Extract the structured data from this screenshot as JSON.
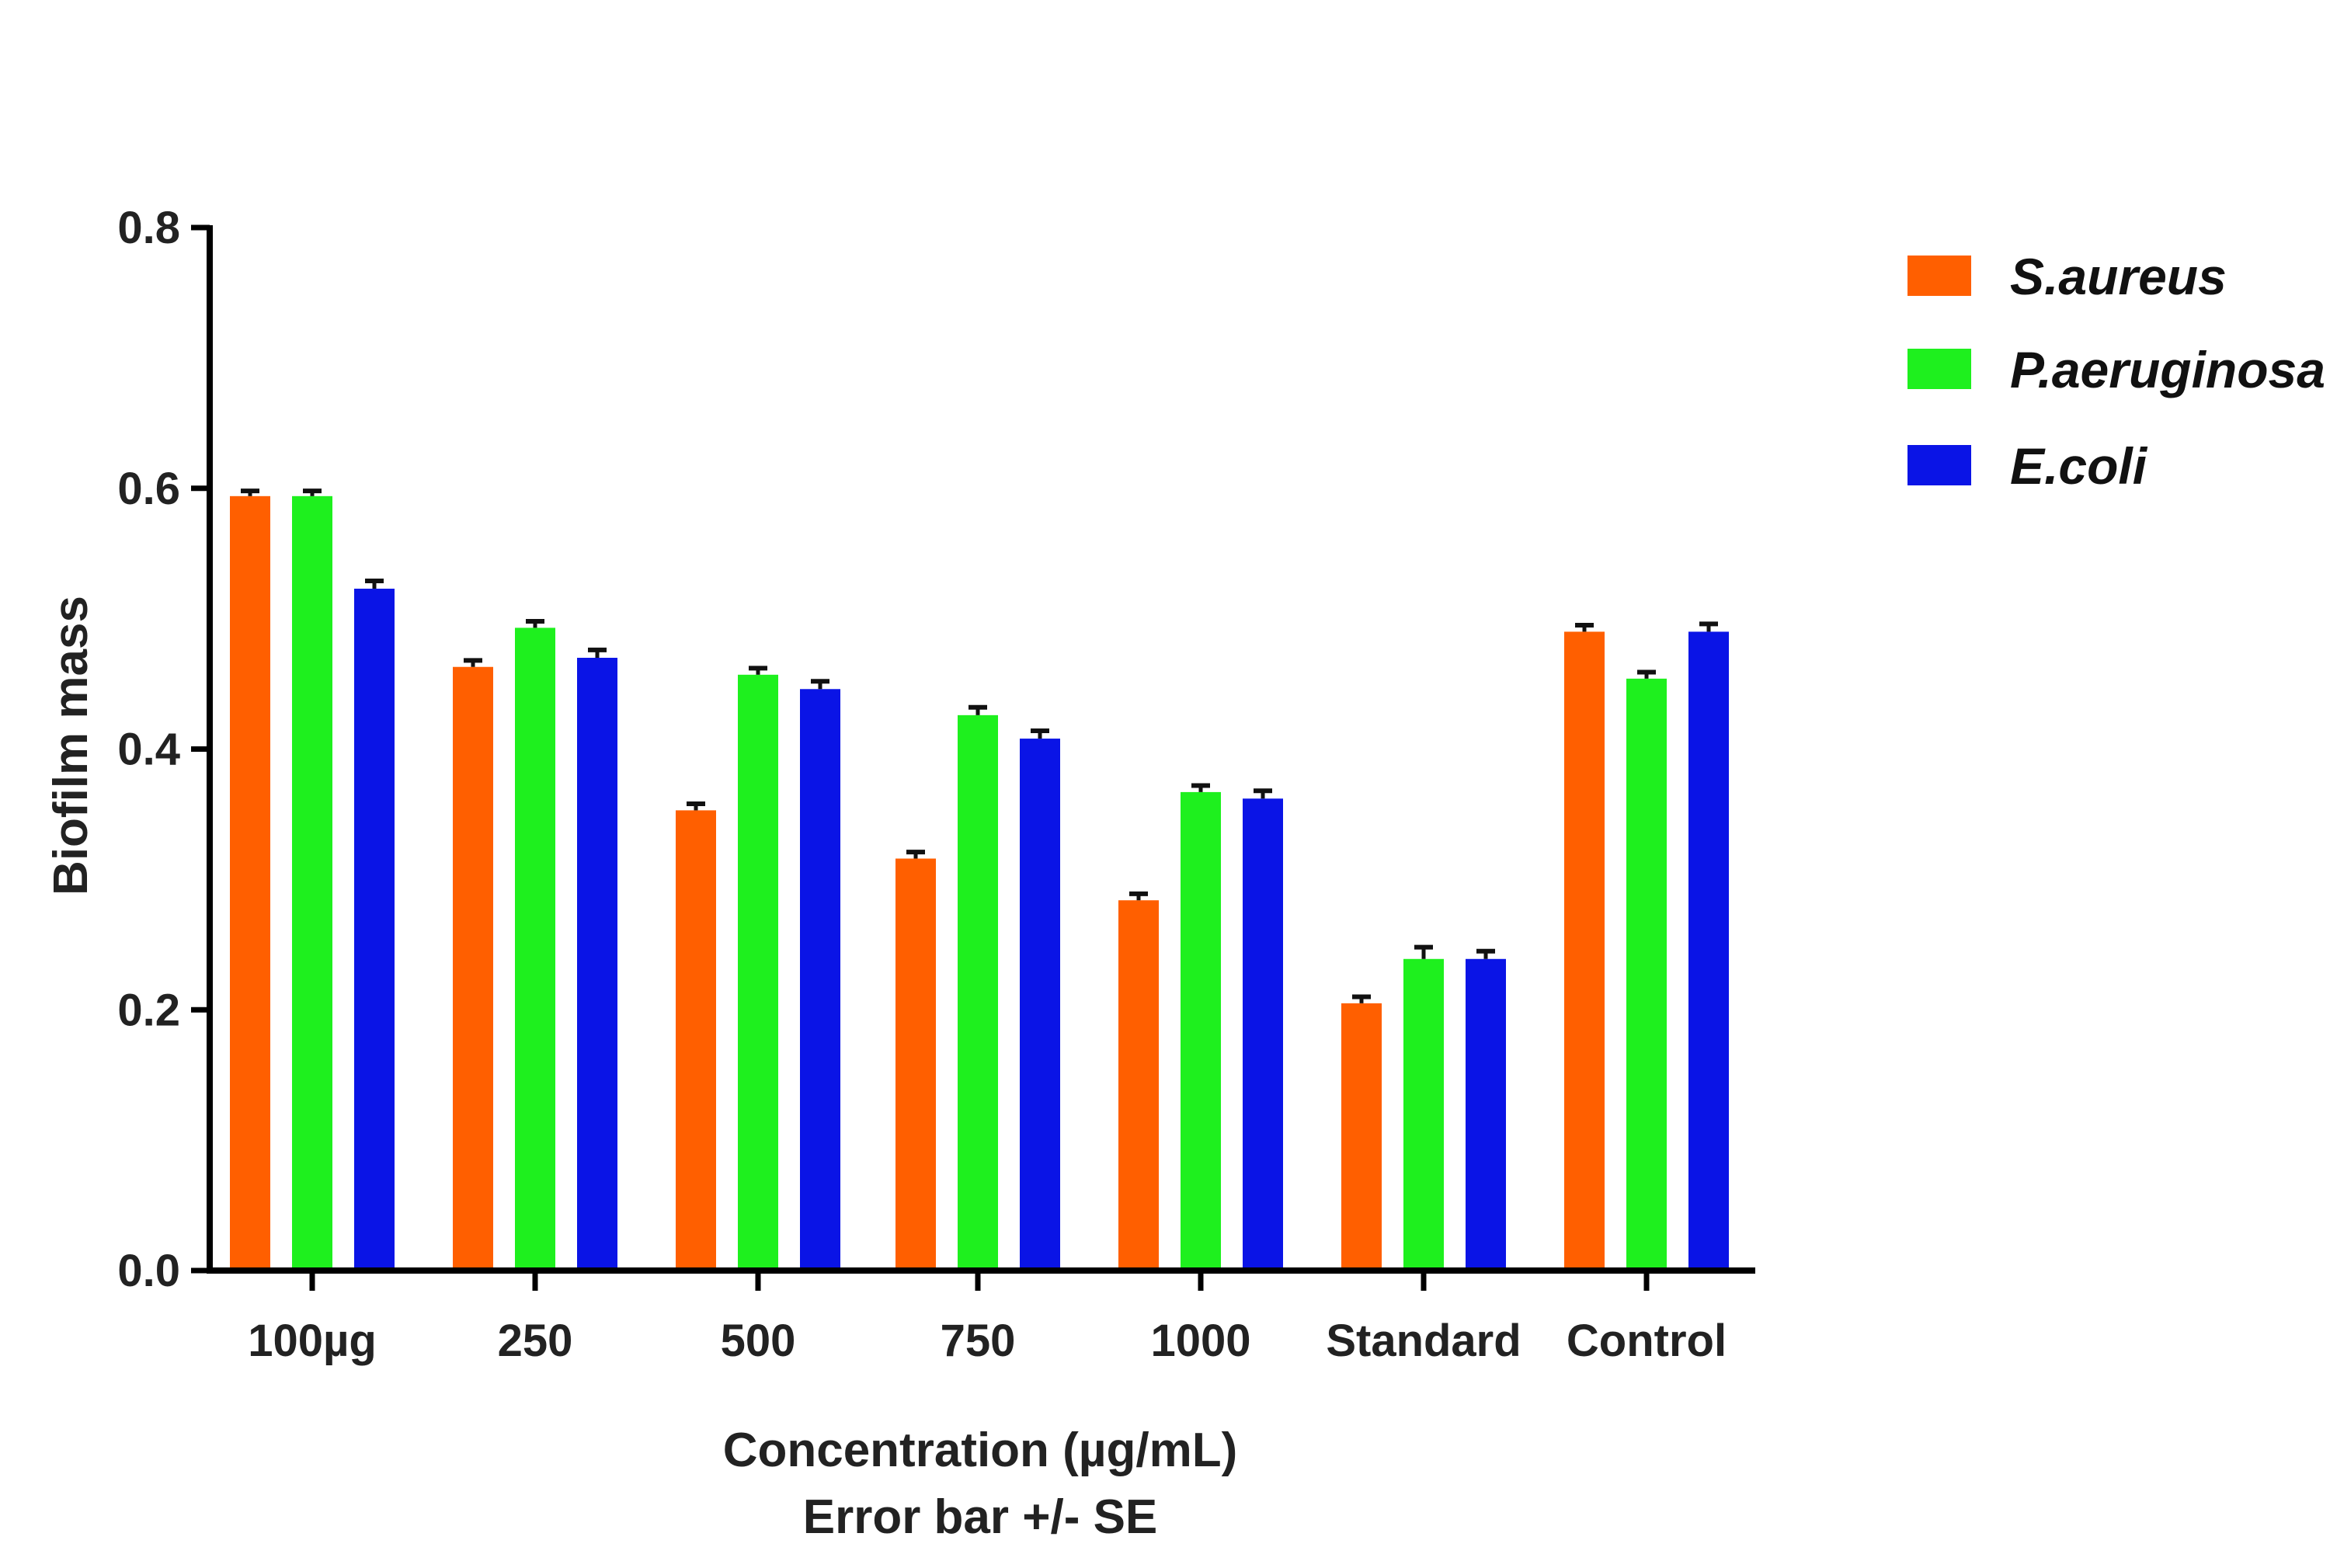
{
  "chart_data": {
    "type": "bar",
    "title": "",
    "xlabel": "Concentration (µg/mL)",
    "xlabel_sub": "Error bar +/- SE",
    "ylabel": "Biofilm mass",
    "ylim": [
      0,
      0.8
    ],
    "yticks": [
      "0.0",
      "0.2",
      "0.4",
      "0.6",
      "0.8"
    ],
    "grid": false,
    "legend_position": "top-right",
    "categories": [
      "100µg",
      "250",
      "500",
      "750",
      "1000",
      "Standard",
      "Control"
    ],
    "series": [
      {
        "name": "S.aureus",
        "color": "#FF5F00",
        "values": [
          0.594,
          0.463,
          0.353,
          0.316,
          0.284,
          0.205,
          0.49
        ],
        "error": [
          0.004,
          0.005,
          0.005,
          0.005,
          0.005,
          0.005,
          0.005
        ]
      },
      {
        "name": "P.aeruginosa",
        "color": "#1EF01E",
        "values": [
          0.594,
          0.493,
          0.457,
          0.426,
          0.367,
          0.239,
          0.454
        ],
        "error": [
          0.004,
          0.005,
          0.005,
          0.006,
          0.005,
          0.009,
          0.005
        ]
      },
      {
        "name": "E.coli",
        "color": "#0A14E6",
        "values": [
          0.523,
          0.47,
          0.446,
          0.408,
          0.362,
          0.239,
          0.49
        ],
        "error": [
          0.006,
          0.006,
          0.006,
          0.006,
          0.006,
          0.006,
          0.006
        ]
      }
    ]
  }
}
